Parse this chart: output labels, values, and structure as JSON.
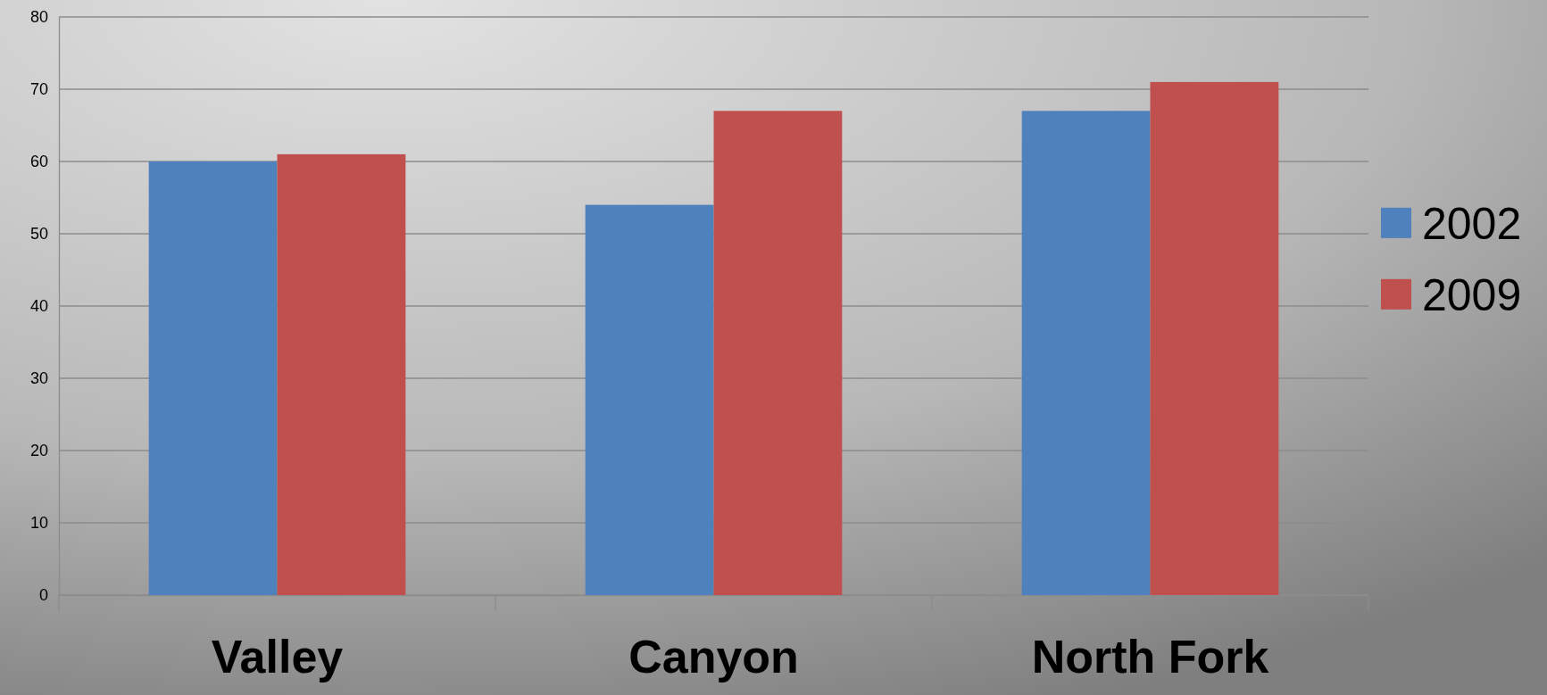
{
  "chart_data": {
    "type": "bar",
    "categories": [
      "Valley",
      "Canyon",
      "North Fork"
    ],
    "series": [
      {
        "name": "2002",
        "color": "#4f81bd",
        "values": [
          60,
          54,
          67
        ]
      },
      {
        "name": "2009",
        "color": "#c0504d",
        "values": [
          61,
          67,
          71
        ]
      }
    ],
    "ylim": [
      0,
      80
    ],
    "yticks": [
      0,
      10,
      20,
      30,
      40,
      50,
      60,
      70,
      80
    ],
    "grid": "y",
    "legend": "right"
  }
}
